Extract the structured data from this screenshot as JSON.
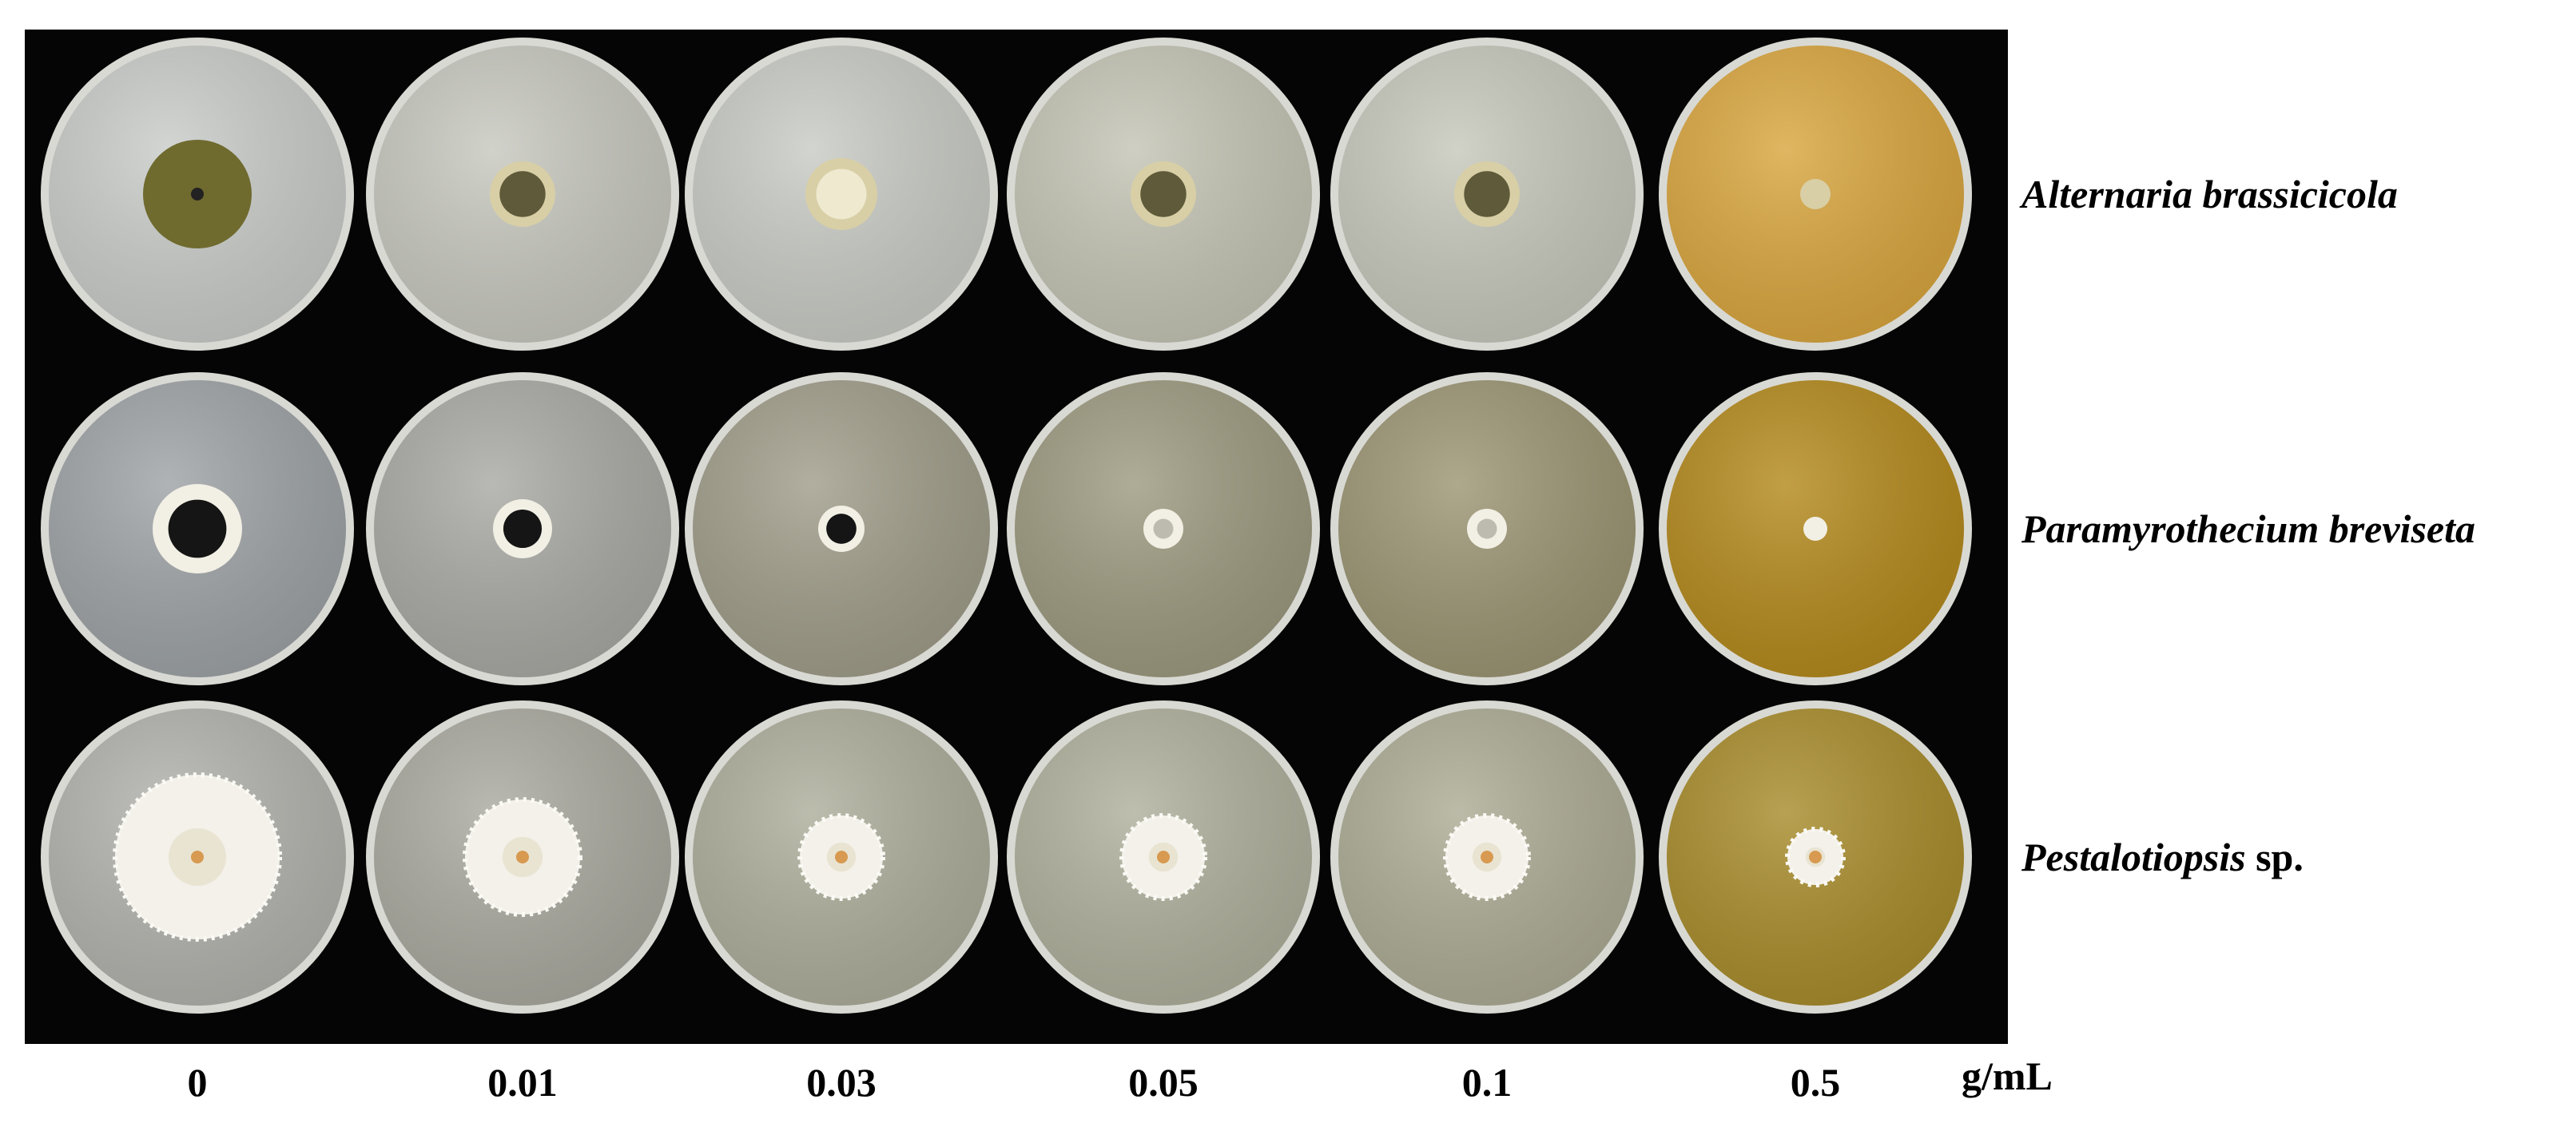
{
  "rows": [
    {
      "italic": "Alternaria brassicicola"
    },
    {
      "italic": "Paramyrothecium breviseta"
    },
    {
      "italic": "Pestalotiopsis",
      "plain": "sp."
    }
  ],
  "columns": [
    "0",
    "0.01",
    "0.03",
    "0.05",
    "0.1",
    "0.5"
  ],
  "unit": "g/mL"
}
